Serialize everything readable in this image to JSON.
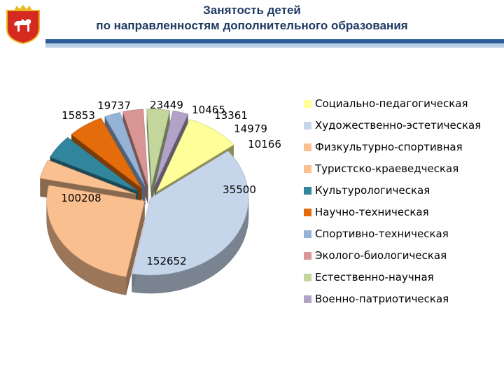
{
  "header": {
    "title_line1": "Занятость детей",
    "title_line2": "по направленностям дополнительного образования"
  },
  "colors": {
    "accent_dark": "#2c5c9b",
    "accent_light": "#b9cde6",
    "emblem_red": "#d42a20",
    "emblem_gold": "#e8b923"
  },
  "chart_data": {
    "type": "pie",
    "style": "3d-exploded",
    "legend_position": "right",
    "series": [
      {
        "name": "Социально-педагогическая",
        "value": 35500,
        "color": "#ffff99"
      },
      {
        "name": "Художественно-эстетическая",
        "value": 152652,
        "color": "#c5d5ea"
      },
      {
        "name": "Физкультурно-спортивная",
        "value": 100208,
        "color": "#fabf8f"
      },
      {
        "name": "Туристско-краеведческая",
        "value": 15853,
        "color": "#fac090"
      },
      {
        "name": "Культурологическая",
        "value": 19737,
        "color": "#31859c"
      },
      {
        "name": "Научно-техническая",
        "value": 23449,
        "color": "#e46c0a"
      },
      {
        "name": "Спортивно-техническая",
        "value": 10465,
        "color": "#95b3d7"
      },
      {
        "name": "Эколого-биологическая",
        "value": 13361,
        "color": "#d99694"
      },
      {
        "name": "Естественно-научная",
        "value": 14979,
        "color": "#c3d69b"
      },
      {
        "name": "Военно-патриотическая",
        "value": 10166,
        "color": "#b3a2c7"
      }
    ],
    "data_labels": [
      "35500",
      "152652",
      "100208",
      "15853",
      "19737",
      "23449",
      "10465",
      "13361",
      "14979",
      "10166"
    ]
  }
}
